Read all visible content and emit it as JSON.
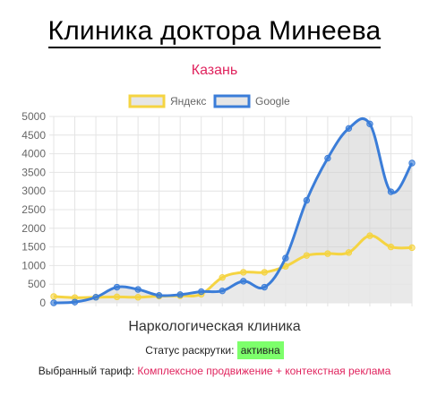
{
  "header": {
    "title": "Клиника доктора Минеева",
    "city": "Казань"
  },
  "chart_data": {
    "type": "line",
    "area": true,
    "y_ticks": [
      0,
      500,
      1000,
      1500,
      2000,
      2500,
      3000,
      3500,
      4000,
      4500,
      5000
    ],
    "ylim": [
      0,
      5000
    ],
    "x": [
      0,
      1,
      2,
      3,
      4,
      5,
      6,
      7,
      8,
      9,
      10,
      11,
      12,
      13,
      14,
      15,
      16,
      17
    ],
    "legend_position": "top",
    "grid": true,
    "series": [
      {
        "name": "Яндекс",
        "color": "#f5d442",
        "fill": "#e9e9e9",
        "values": [
          170,
          140,
          150,
          160,
          150,
          180,
          190,
          230,
          680,
          820,
          820,
          980,
          1270,
          1320,
          1350,
          1800,
          1500,
          1480
        ]
      },
      {
        "name": "Google",
        "color": "#3b7dd8",
        "fill": "#cfcfcf",
        "values": [
          0,
          20,
          150,
          420,
          360,
          200,
          220,
          300,
          320,
          580,
          420,
          1200,
          2750,
          3880,
          4680,
          4800,
          2980,
          3750
        ]
      }
    ],
    "xlabel": "Наркологическая клиника"
  },
  "footer": {
    "status_label": "Статус раскрутки:",
    "status_value": "активна",
    "status_color": "#7dff6b",
    "tariff_label": "Выбранный тариф:",
    "tariff_value": "Комплексное продвижение + контекстная реклама"
  }
}
